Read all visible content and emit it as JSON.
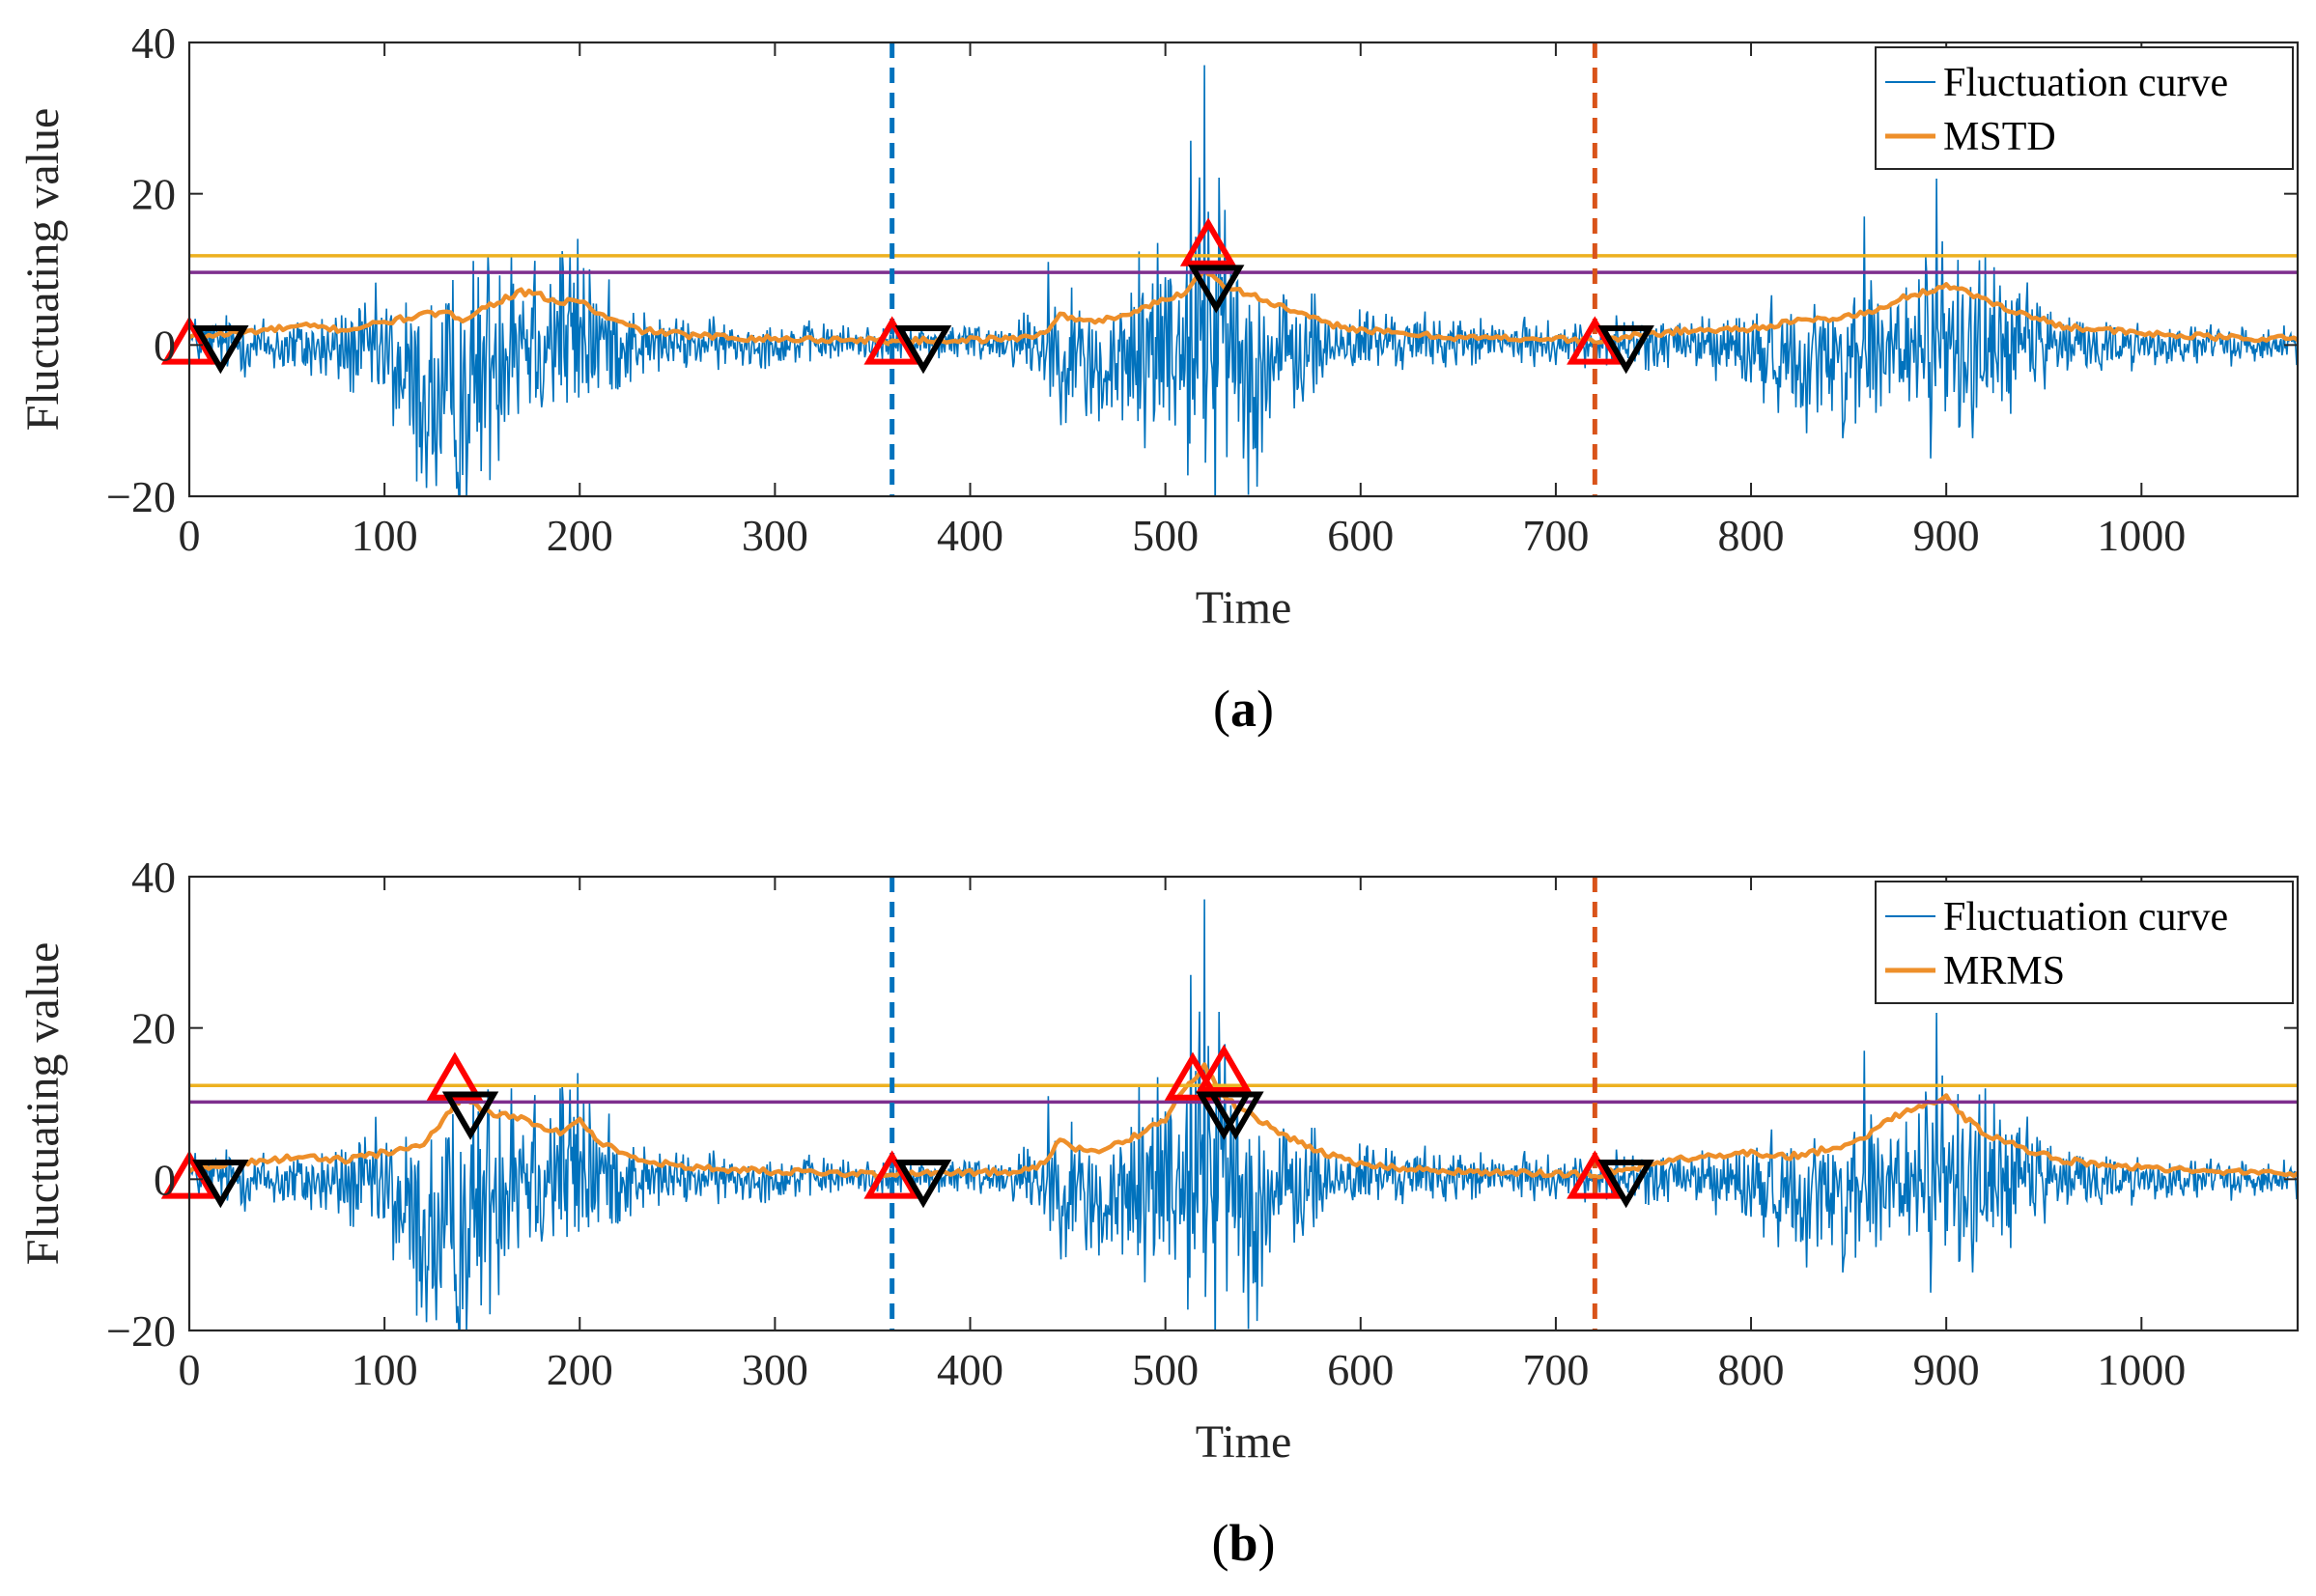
{
  "colors": {
    "fluctuation": "#0072BD",
    "envelope": "#EE8F2A",
    "threshold_high": "#EDB120",
    "threshold_low": "#7E2F8E",
    "vline_1": "#0072BD",
    "vline_2": "#D95319",
    "start_marker": "#FF0000",
    "end_marker": "#000000"
  },
  "chart_data": [
    {
      "type": "line",
      "panel_label": "a",
      "caption_open": "(",
      "caption_close": ")",
      "xlabel": "Time",
      "ylabel": "Fluctuating value",
      "xlim": [
        0,
        1080
      ],
      "ylim": [
        -20,
        40
      ],
      "xticks": [
        0,
        100,
        200,
        300,
        400,
        500,
        600,
        700,
        800,
        900,
        1000
      ],
      "yticks": [
        -20,
        0,
        20,
        40
      ],
      "ytick_labels": [
        "−20",
        "0",
        "20",
        "40"
      ],
      "legend": [
        "Fluctuation curve",
        "MSTD"
      ],
      "legend_position": "top-right",
      "thresholds": [
        {
          "name": "upper",
          "value": 11.8
        },
        {
          "name": "lower",
          "value": 9.6
        }
      ],
      "vlines": [
        360,
        720
      ],
      "start_markers": [
        {
          "x": 0,
          "y": 0
        },
        {
          "x": 360,
          "y": 0
        },
        {
          "x": 522,
          "y": 13
        },
        {
          "x": 720,
          "y": 0
        }
      ],
      "end_markers": [
        {
          "x": 16,
          "y": 0
        },
        {
          "x": 376,
          "y": 0
        },
        {
          "x": 526,
          "y": 8
        },
        {
          "x": 736,
          "y": 0
        }
      ],
      "envelope": {
        "name": "MSTD",
        "x": [
          0,
          20,
          40,
          60,
          80,
          100,
          120,
          130,
          140,
          160,
          170,
          180,
          190,
          200,
          210,
          230,
          260,
          300,
          340,
          360,
          380,
          420,
          438,
          445,
          460,
          480,
          500,
          510,
          520,
          530,
          540,
          560,
          580,
          600,
          620,
          650,
          700,
          720,
          740,
          760,
          800,
          820,
          840,
          855,
          870,
          880,
          890,
          900,
          910,
          920,
          940,
          960,
          1000,
          1040,
          1080
        ],
        "values": [
          1,
          1.5,
          2,
          2.5,
          2,
          3,
          4,
          4.2,
          3.5,
          6,
          7,
          6.5,
          5.5,
          6,
          4,
          2,
          1.2,
          0.8,
          0.7,
          0.5,
          0.6,
          0.8,
          1.5,
          4,
          3,
          4,
          6,
          7,
          10,
          8,
          7,
          5,
          3,
          2,
          1.5,
          1,
          0.8,
          0.5,
          1.2,
          1.8,
          2.2,
          3,
          3.5,
          4,
          5,
          6.5,
          7,
          8,
          7,
          6,
          4,
          2.5,
          1.5,
          1,
          0.8
        ]
      },
      "fluctuation": {
        "name": "Fluctuation curve",
        "key_points": [
          {
            "x": 0,
            "y": 0
          },
          {
            "x": 100,
            "y": -5
          },
          {
            "x": 125,
            "y": -14
          },
          {
            "x": 137,
            "y": -19
          },
          {
            "x": 165,
            "y": 12
          },
          {
            "x": 190,
            "y": 12
          },
          {
            "x": 205,
            "y": 10
          },
          {
            "x": 440,
            "y": 11
          },
          {
            "x": 470,
            "y": -8
          },
          {
            "x": 513,
            "y": 27
          },
          {
            "x": 520,
            "y": 37
          },
          {
            "x": 540,
            "y": -15
          },
          {
            "x": 858,
            "y": 17
          },
          {
            "x": 892,
            "y": -15
          },
          {
            "x": 895,
            "y": 22
          },
          {
            "x": 920,
            "y": 12
          },
          {
            "x": 1080,
            "y": 0
          }
        ]
      }
    },
    {
      "type": "line",
      "panel_label": "b",
      "caption_open": "(",
      "caption_close": ")",
      "xlabel": "Time",
      "ylabel": "Fluctuating value",
      "xlim": [
        0,
        1080
      ],
      "ylim": [
        -20,
        40
      ],
      "xticks": [
        0,
        100,
        200,
        300,
        400,
        500,
        600,
        700,
        800,
        900,
        1000
      ],
      "yticks": [
        -20,
        0,
        20,
        40
      ],
      "ytick_labels": [
        "−20",
        "0",
        "20",
        "40"
      ],
      "legend": [
        "Fluctuation curve",
        "MRMS"
      ],
      "legend_position": "top-right",
      "thresholds": [
        {
          "name": "upper",
          "value": 12.4
        },
        {
          "name": "lower",
          "value": 10.2
        }
      ],
      "vlines": [
        360,
        720
      ],
      "start_markers": [
        {
          "x": 0,
          "y": 0
        },
        {
          "x": 136,
          "y": 13
        },
        {
          "x": 360,
          "y": 0
        },
        {
          "x": 514,
          "y": 13
        },
        {
          "x": 530,
          "y": 14
        },
        {
          "x": 720,
          "y": 0
        }
      ],
      "end_markers": [
        {
          "x": 16,
          "y": 0
        },
        {
          "x": 144,
          "y": 9
        },
        {
          "x": 376,
          "y": 0
        },
        {
          "x": 530,
          "y": 9
        },
        {
          "x": 536,
          "y": 9
        },
        {
          "x": 736,
          "y": 0
        }
      ],
      "envelope": {
        "name": "MRMS",
        "x": [
          0,
          20,
          40,
          60,
          80,
          100,
          120,
          130,
          140,
          150,
          170,
          180,
          190,
          200,
          210,
          230,
          260,
          300,
          340,
          360,
          380,
          420,
          438,
          445,
          460,
          480,
          500,
          510,
          520,
          530,
          540,
          560,
          580,
          600,
          620,
          650,
          700,
          720,
          740,
          760,
          800,
          820,
          840,
          855,
          870,
          880,
          890,
          900,
          910,
          920,
          940,
          960,
          1000,
          1040,
          1080
        ],
        "values": [
          1,
          2,
          2.5,
          3,
          2.5,
          3.5,
          4.5,
          8,
          11,
          9,
          8,
          7,
          6,
          8,
          5,
          2.5,
          1.5,
          1,
          0.8,
          0.5,
          0.8,
          1,
          2,
          5,
          3.5,
          5,
          8,
          12,
          15,
          11,
          9,
          6,
          3.5,
          2,
          1.5,
          1,
          0.8,
          0.5,
          1.5,
          2.5,
          3.5,
          3,
          4,
          5,
          8,
          9,
          10,
          11,
          8,
          6,
          4,
          2.5,
          1.5,
          1,
          0.8
        ]
      },
      "fluctuation": {
        "name": "Fluctuation curve",
        "key_points": [
          {
            "x": 0,
            "y": 0
          },
          {
            "x": 100,
            "y": -5
          },
          {
            "x": 125,
            "y": -14
          },
          {
            "x": 137,
            "y": -19
          },
          {
            "x": 165,
            "y": 12
          },
          {
            "x": 190,
            "y": 12
          },
          {
            "x": 205,
            "y": 10
          },
          {
            "x": 440,
            "y": 11
          },
          {
            "x": 470,
            "y": -8
          },
          {
            "x": 513,
            "y": 27
          },
          {
            "x": 520,
            "y": 37
          },
          {
            "x": 540,
            "y": -15
          },
          {
            "x": 858,
            "y": 17
          },
          {
            "x": 892,
            "y": -15
          },
          {
            "x": 895,
            "y": 22
          },
          {
            "x": 920,
            "y": 12
          },
          {
            "x": 1080,
            "y": 0
          }
        ]
      }
    }
  ]
}
